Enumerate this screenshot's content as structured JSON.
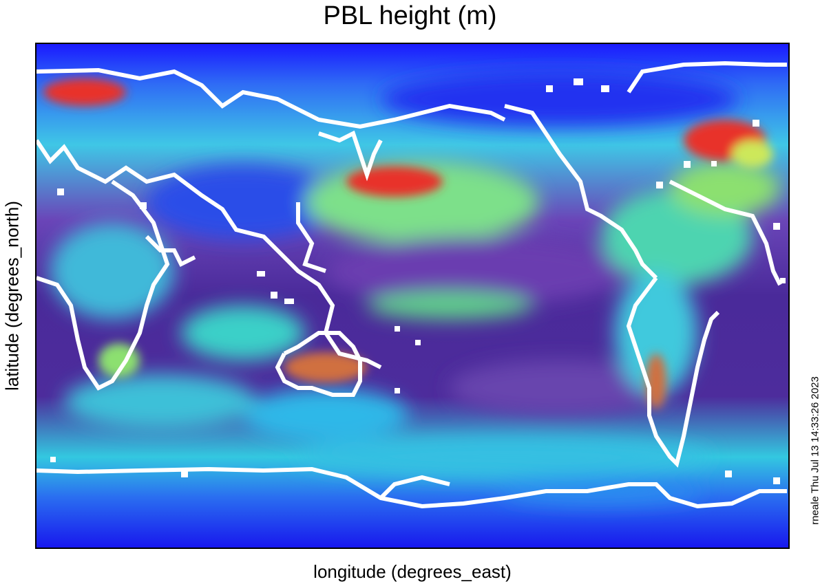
{
  "chart_data": {
    "type": "heatmap",
    "title": "PBL height (m)",
    "xlabel": "longitude (degrees_east)",
    "ylabel": "latitude (degrees_north)",
    "colormap": [
      "#1a1aff",
      "#22d3ff",
      "#3ddbbd",
      "#5a2fa0",
      "#6ee07a",
      "#cde85a",
      "#e8322a"
    ],
    "coastline_color": "#ffffff",
    "tick_labels": false,
    "grid": false
  },
  "footer": {
    "timestamp": "rneale Thu Jul 13 14:33:26 2023"
  }
}
